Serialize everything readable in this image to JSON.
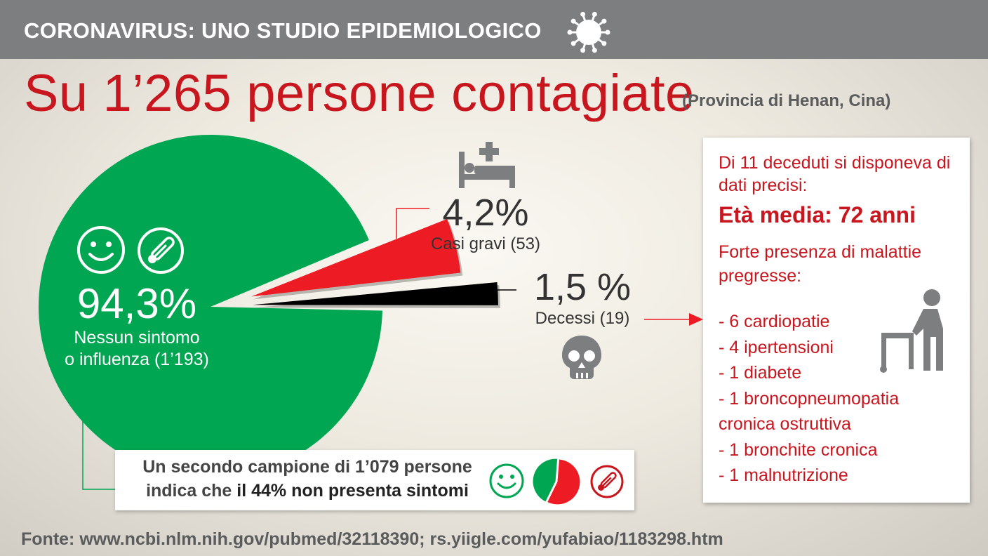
{
  "header": {
    "title": "CORONAVIRUS: UNO STUDIO EPIDEMIOLOGICO",
    "icon": "virus-icon"
  },
  "headline": {
    "main": "Su 1’265 persone contagiate",
    "sub": "(Provincia di Henan, Cina)"
  },
  "chart_data": {
    "type": "pie",
    "total": 1265,
    "slices": [
      {
        "value_label": "94,3%",
        "percent": 94.3,
        "label": "Nessun sintomo o influenza (1’193)",
        "label_lines": [
          "Nessun sintomo",
          "o influenza (1’193)"
        ],
        "count": 1193,
        "color": "#00a651"
      },
      {
        "value_label": "4,2%",
        "percent": 4.2,
        "label": "Casi gravi (53)",
        "count": 53,
        "color": "#ed1c24"
      },
      {
        "value_label": "1,5 %",
        "percent": 1.5,
        "label": "Decessi (19)",
        "count": 19,
        "color": "#000000"
      }
    ]
  },
  "sample": {
    "line1": "Un secondo campione di 1’079 persone",
    "line2_prefix": "indica che ",
    "line2_bold": "il 44% non presenta sintomi",
    "mini_chart": {
      "no_symptoms_percent": 44,
      "colors": [
        "#00a651",
        "#ed1c24"
      ]
    }
  },
  "deaths_info": {
    "intro": "Di 11 deceduti si disponeva di dati precisi:",
    "age": "Età media: 72 anni",
    "conditions_title": "Forte presenza di malattie pregresse:",
    "conditions": [
      "- 6 cardiopatie",
      "- 4 ipertensioni",
      "- 1 diabete",
      "- 1 broncopneumopatia",
      "cronica ostruttiva",
      "- 1 bronchite cronica",
      "- 1 malnutrizione"
    ],
    "icon": "elderly-walker-icon"
  },
  "icons": [
    "smiley-icon",
    "thermometer-icon",
    "hospital-bed-icon",
    "skull-icon"
  ],
  "source": "Fonte: www.ncbi.nlm.nih.gov/pubmed/32118390; rs.yiigle.com/yufabiao/1183298.htm",
  "colors": {
    "accent_red": "#c8161f",
    "green": "#00a651",
    "header_gray": "#7d7e80"
  }
}
